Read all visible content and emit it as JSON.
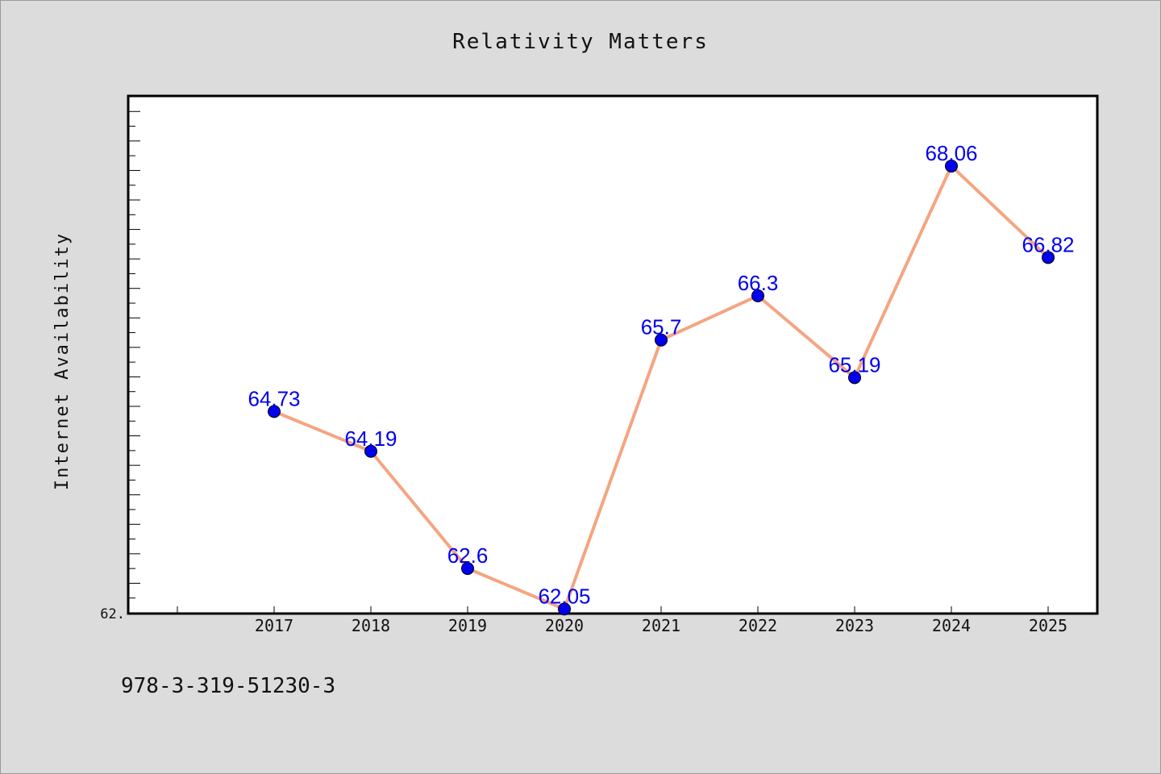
{
  "chart_data": {
    "type": "line",
    "title": "Relativity Matters",
    "xlabel": "",
    "ylabel": "Internet Availability",
    "categories": [
      "2017",
      "2018",
      "2019",
      "2020",
      "2021",
      "2022",
      "2023",
      "2024",
      "2025"
    ],
    "series": [
      {
        "values": [
          64.73,
          64.19,
          62.6,
          62.05,
          65.7,
          66.3,
          65.19,
          68.06,
          66.82
        ]
      }
    ],
    "data_labels": [
      "64.73",
      "64.19",
      "62.6",
      "62.05",
      "65.7",
      "66.3",
      "65.19",
      "68.06",
      "66.82"
    ],
    "y_tick_label": "62.",
    "ylim": [
      62.0,
      69.0
    ],
    "grid": false,
    "legend": "none",
    "colors": {
      "line": "#f4a582",
      "marker": "#0000ee",
      "label": "#0000ee"
    }
  },
  "caption": "978-3-319-51230-3"
}
